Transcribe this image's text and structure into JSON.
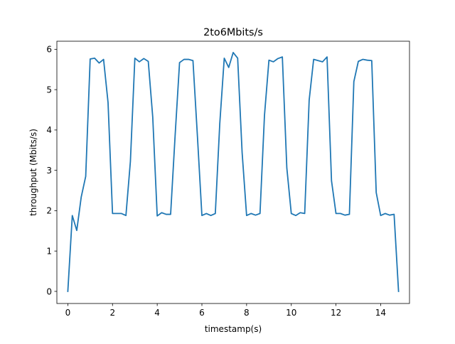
{
  "chart_data": {
    "type": "line",
    "title": "2to6Mbits/s",
    "xlabel": "timestamp(s)",
    "ylabel": "throughput (Mbits/s)",
    "xlim": [
      -0.49,
      15.29
    ],
    "ylim": [
      -0.3,
      6.2
    ],
    "xticks": [
      0,
      2,
      4,
      6,
      8,
      10,
      12,
      14
    ],
    "xtick_labels": [
      "0",
      "2",
      "4",
      "6",
      "8",
      "10",
      "12",
      "14"
    ],
    "yticks": [
      0,
      1,
      2,
      3,
      4,
      5,
      6
    ],
    "ytick_labels": [
      "0",
      "1",
      "2",
      "3",
      "4",
      "5",
      "6"
    ],
    "grid": false,
    "legend": "none",
    "line_color": "#1f77b4",
    "series": [
      {
        "x": [
          0.0,
          0.2,
          0.4,
          0.6,
          0.8,
          1.0,
          1.2,
          1.4,
          1.6,
          1.8,
          2.0,
          2.2,
          2.4,
          2.6,
          2.8,
          3.0,
          3.2,
          3.4,
          3.6,
          3.8,
          4.0,
          4.2,
          4.4,
          4.6,
          4.8,
          5.0,
          5.2,
          5.4,
          5.6,
          5.8,
          6.0,
          6.2,
          6.4,
          6.6,
          6.8,
          7.0,
          7.2,
          7.4,
          7.6,
          7.8,
          8.0,
          8.2,
          8.4,
          8.6,
          8.8,
          9.0,
          9.2,
          9.4,
          9.6,
          9.8,
          10.0,
          10.2,
          10.4,
          10.6,
          10.8,
          11.0,
          11.2,
          11.4,
          11.6,
          11.8,
          12.0,
          12.2,
          12.4,
          12.6,
          12.8,
          13.0,
          13.2,
          13.4,
          13.6,
          13.8,
          14.0,
          14.2,
          14.4,
          14.6,
          14.8
        ],
        "y": [
          0.0,
          1.88,
          1.51,
          2.34,
          2.85,
          5.76,
          5.78,
          5.66,
          5.75,
          4.68,
          1.93,
          1.93,
          1.93,
          1.88,
          3.22,
          5.78,
          5.69,
          5.77,
          5.7,
          4.32,
          1.87,
          1.95,
          1.91,
          1.91,
          3.85,
          5.67,
          5.75,
          5.75,
          5.72,
          3.84,
          1.88,
          1.93,
          1.88,
          1.93,
          4.16,
          5.78,
          5.55,
          5.92,
          5.78,
          3.44,
          1.88,
          1.93,
          1.89,
          1.93,
          4.36,
          5.73,
          5.69,
          5.77,
          5.81,
          3.06,
          1.93,
          1.88,
          1.95,
          1.93,
          4.74,
          5.75,
          5.72,
          5.69,
          5.81,
          2.74,
          1.93,
          1.93,
          1.89,
          1.91,
          5.2,
          5.7,
          5.75,
          5.73,
          5.72,
          2.45,
          1.88,
          1.93,
          1.89,
          1.91,
          0.0
        ]
      }
    ]
  }
}
